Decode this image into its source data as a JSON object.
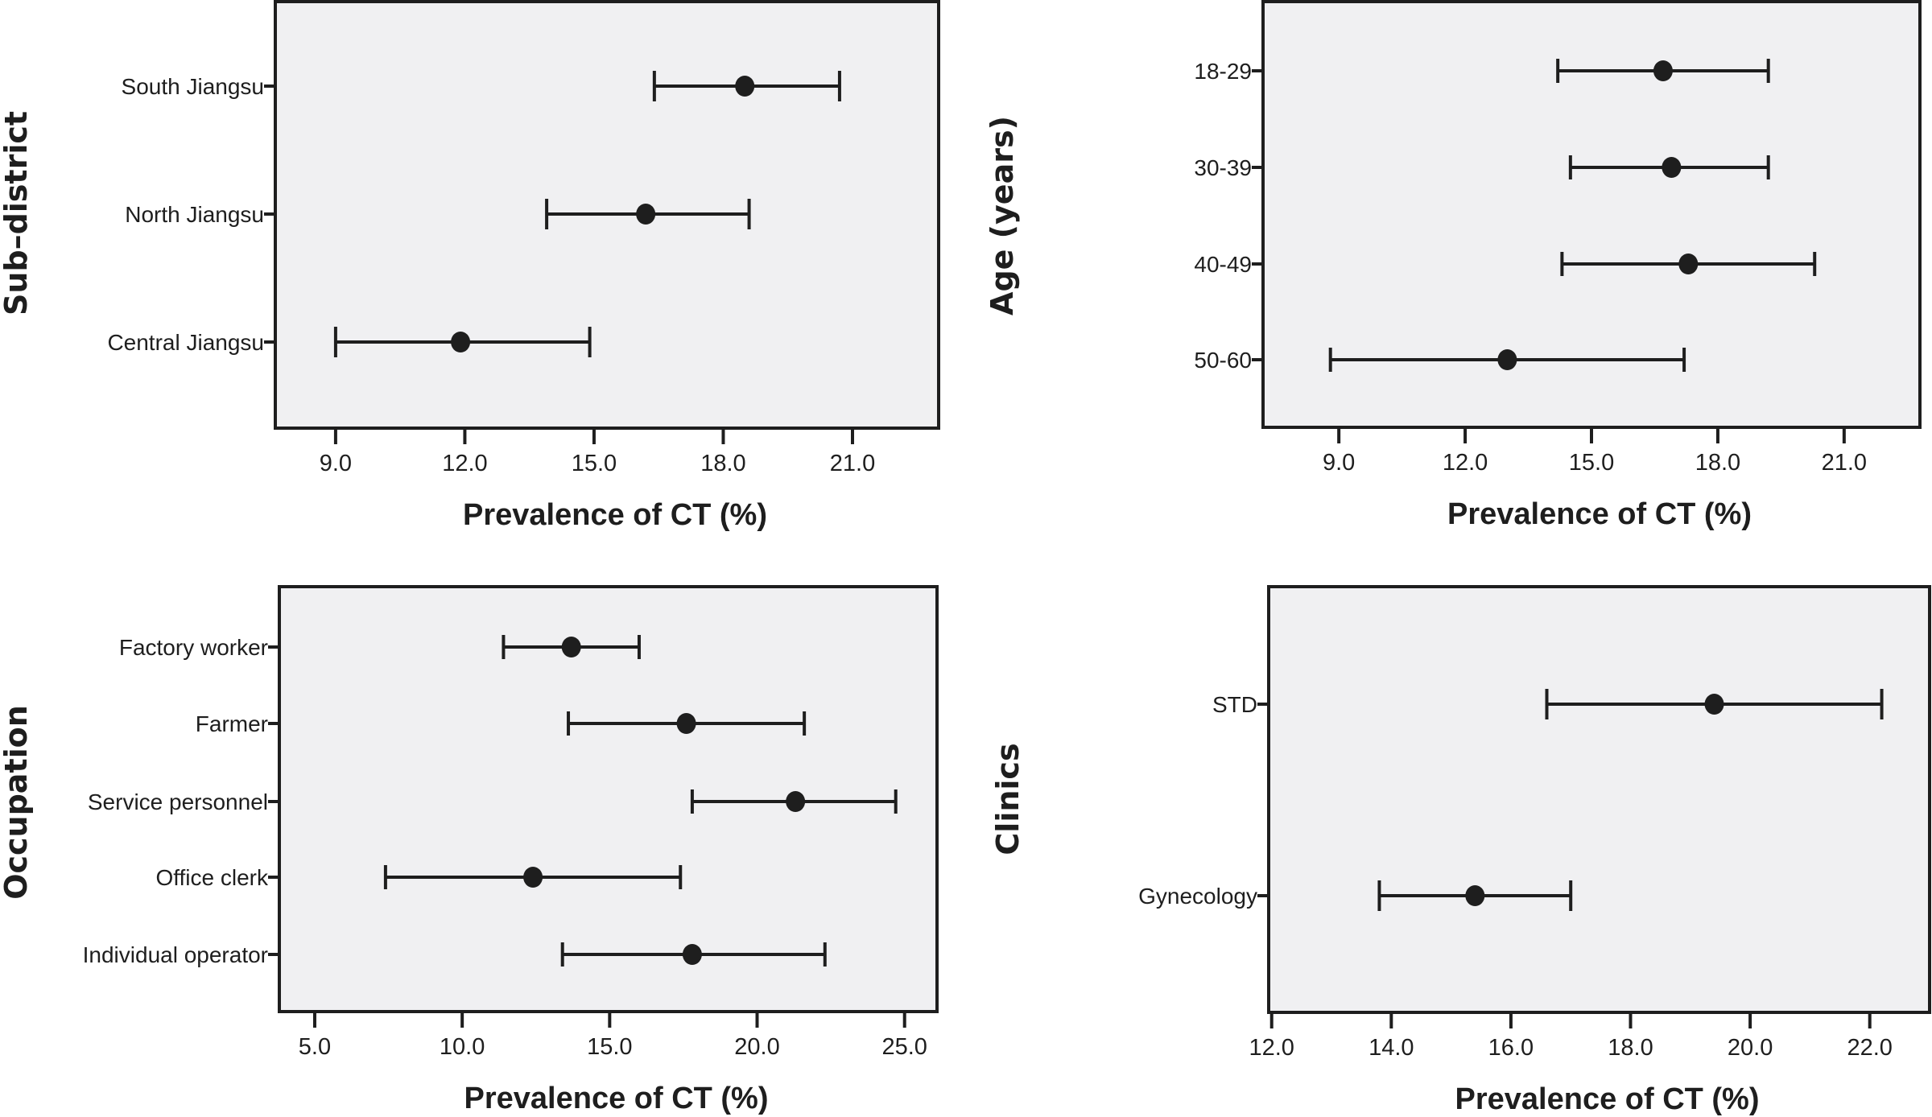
{
  "colors": {
    "plot_background": "#f0f0f2",
    "ink": "#1e1e1e",
    "page": "#ffffff"
  },
  "chart_data": [
    {
      "type": "scatter",
      "subtype": "forest-plot / point with 95% CI error bars",
      "title": "",
      "ylabel": "Sub–district",
      "xlabel": "Prevalence of CT (%)",
      "xlim": [
        7.6,
        23.0
      ],
      "xticks": [
        9.0,
        12.0,
        15.0,
        18.0,
        21.0
      ],
      "xtick_labels": [
        "9.0",
        "12.0",
        "15.0",
        "18.0",
        "21.0"
      ],
      "grid": false,
      "categories": [
        "South Jiangsu",
        "North Jiangsu",
        "Central Jiangsu"
      ],
      "estimate": [
        18.5,
        16.2,
        11.9
      ],
      "ci_lower": [
        16.4,
        13.9,
        9.0
      ],
      "ci_upper": [
        20.7,
        18.6,
        14.9
      ]
    },
    {
      "type": "scatter",
      "subtype": "forest-plot / point with 95% CI error bars",
      "title": "",
      "ylabel": "Age (years)",
      "xlabel": "Prevalence of CT (%)",
      "xlim": [
        7.2,
        22.8
      ],
      "xticks": [
        9.0,
        12.0,
        15.0,
        18.0,
        21.0
      ],
      "xtick_labels": [
        "9.0",
        "12.0",
        "15.0",
        "18.0",
        "21.0"
      ],
      "grid": false,
      "categories": [
        "18-29",
        "30-39",
        "40-49",
        "50-60"
      ],
      "estimate": [
        16.7,
        16.9,
        17.3,
        13.0
      ],
      "ci_lower": [
        14.2,
        14.5,
        14.3,
        8.8
      ],
      "ci_upper": [
        19.2,
        19.2,
        20.3,
        17.2
      ]
    },
    {
      "type": "scatter",
      "subtype": "forest-plot / point with 95% CI error bars",
      "title": "",
      "ylabel": "Occupation",
      "xlabel": "Prevalence of CT (%)",
      "xlim": [
        3.8,
        26.1
      ],
      "xticks": [
        5.0,
        10.0,
        15.0,
        20.0,
        25.0
      ],
      "xtick_labels": [
        "5.0",
        "10.0",
        "15.0",
        "20.0",
        "25.0"
      ],
      "grid": false,
      "categories": [
        "Factory worker",
        "Farmer",
        "Service personnel",
        "Office clerk",
        "Individual operator"
      ],
      "estimate": [
        13.7,
        17.6,
        21.3,
        12.4,
        17.8
      ],
      "ci_lower": [
        11.4,
        13.6,
        17.8,
        7.4,
        13.4
      ],
      "ci_upper": [
        16.0,
        21.6,
        24.7,
        17.4,
        22.3
      ]
    },
    {
      "type": "scatter",
      "subtype": "forest-plot / point with 95% CI error bars",
      "title": "",
      "ylabel": "Clinics",
      "xlabel": "Prevalence of CT (%)",
      "xlim": [
        11.95,
        23.0
      ],
      "xticks": [
        12.0,
        14.0,
        16.0,
        18.0,
        20.0,
        22.0
      ],
      "xtick_labels": [
        "12.0",
        "14.0",
        "16.0",
        "18.0",
        "20.0",
        "22.0"
      ],
      "grid": false,
      "categories": [
        "STD",
        "Gynecology"
      ],
      "estimate": [
        19.4,
        15.4
      ],
      "ci_lower": [
        16.6,
        13.8
      ],
      "ci_upper": [
        22.2,
        17.0
      ]
    }
  ]
}
